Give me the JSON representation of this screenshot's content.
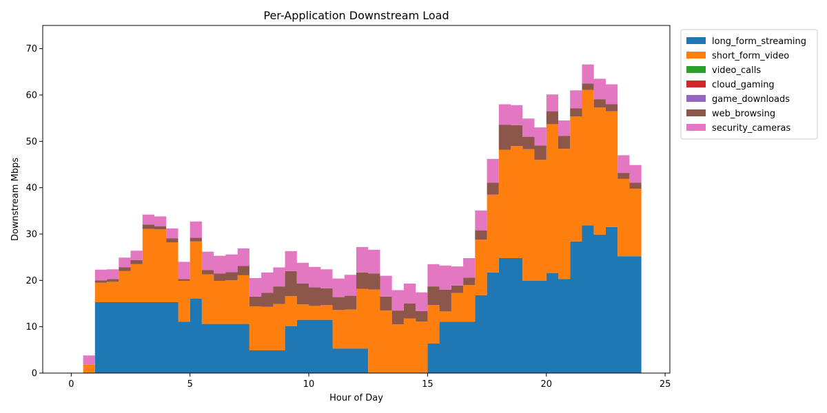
{
  "chart_data": {
    "type": "area",
    "stacked": true,
    "step": true,
    "title": "Per-Application Downstream Load",
    "xlabel": "Hour of Day",
    "ylabel": "Downstream Mbps",
    "xlim": [
      -1.2,
      25.2
    ],
    "ylim": [
      0,
      75
    ],
    "xticks": [
      0,
      5,
      10,
      15,
      20,
      25
    ],
    "yticks": [
      0,
      10,
      20,
      30,
      40,
      50,
      60,
      70
    ],
    "grid": false,
    "legend_position": "outside-upper-right",
    "x": [
      0,
      0.5,
      1,
      1.5,
      2,
      2.5,
      3,
      3.5,
      4,
      4.5,
      5,
      5.5,
      6,
      6.5,
      7,
      7.5,
      8,
      8.5,
      9,
      9.5,
      10,
      10.5,
      11,
      11.5,
      12,
      12.5,
      13,
      13.5,
      14,
      14.5,
      15,
      15.5,
      16,
      16.5,
      17,
      17.5,
      18,
      18.5,
      19,
      19.5,
      20,
      20.5,
      21,
      21.5,
      22,
      22.5,
      23,
      23.5,
      24
    ],
    "series": [
      {
        "name": "long_form_streaming",
        "color": "#1f77b4",
        "values": [
          0,
          0,
          15.3,
          15.3,
          15.3,
          15.3,
          15.3,
          15.3,
          15.3,
          11.1,
          16.1,
          10.6,
          10.6,
          10.6,
          10.6,
          4.9,
          4.9,
          4.9,
          10.1,
          11.5,
          11.5,
          11.5,
          5.3,
          5.3,
          5.3,
          0,
          0,
          0,
          0,
          0,
          6.4,
          11.1,
          11.1,
          11.1,
          16.8,
          21.7,
          24.8,
          24.8,
          19.9,
          19.9,
          21.6,
          20.3,
          28.4,
          31.9,
          29.9,
          31.5,
          25.2,
          25.2,
          25.2
        ]
      },
      {
        "name": "short_form_video",
        "color": "#ff7f0e",
        "values": [
          0,
          1.8,
          4.2,
          4.4,
          6.7,
          8.2,
          15.8,
          15.7,
          12.9,
          8.8,
          12.3,
          10.7,
          9.3,
          9.4,
          10.5,
          9.5,
          9.4,
          10.0,
          6.5,
          3.3,
          3.0,
          3.2,
          8.3,
          8.4,
          12.9,
          18.0,
          13.5,
          10.5,
          11.8,
          11.1,
          8.3,
          2.2,
          6.2,
          7.9,
          12.0,
          16.8,
          23.4,
          24.2,
          28.4,
          26.1,
          32.1,
          28.1,
          27.0,
          29.2,
          27.4,
          25.0,
          16.7,
          14.6,
          12.1
        ]
      },
      {
        "name": "video_calls",
        "color": "#2ca02c",
        "values": [
          0,
          0,
          0,
          0,
          0,
          0,
          0,
          0,
          0,
          0,
          0,
          0,
          0,
          0,
          0,
          0,
          0,
          0,
          0,
          0,
          0,
          0,
          0,
          0,
          0,
          0,
          0,
          0,
          0,
          0,
          0,
          0,
          0,
          0,
          0,
          0,
          0,
          0,
          0,
          0,
          0,
          0,
          0,
          0,
          0,
          0,
          0,
          0,
          0
        ]
      },
      {
        "name": "cloud_gaming",
        "color": "#d62728",
        "values": [
          0,
          0,
          0,
          0,
          0,
          0,
          0,
          0,
          0,
          0,
          0,
          0,
          0,
          0,
          0,
          0,
          0,
          0,
          0,
          0,
          0,
          0,
          0,
          0,
          0,
          0,
          0,
          0,
          0,
          0,
          0,
          0,
          0,
          0,
          0,
          0,
          0,
          0,
          0,
          0,
          0,
          0,
          0,
          0,
          0,
          0,
          0,
          0,
          0
        ]
      },
      {
        "name": "game_downloads",
        "color": "#9467bd",
        "values": [
          0,
          0,
          0,
          0,
          0,
          0,
          0,
          0,
          0,
          0,
          0,
          0,
          0,
          0,
          0,
          0,
          0,
          0,
          0,
          0,
          0,
          0,
          0,
          0,
          0,
          0,
          0,
          0,
          0,
          0,
          0,
          0,
          0,
          0,
          0,
          0,
          0,
          0,
          0,
          0,
          0,
          0,
          0,
          0,
          0,
          0,
          0,
          0,
          0
        ]
      },
      {
        "name": "web_browsing",
        "color": "#8c564b",
        "values": [
          0,
          0,
          0.5,
          0.6,
          0.8,
          0.9,
          0.9,
          0.7,
          0.9,
          0.4,
          0.8,
          0.9,
          1.6,
          1.8,
          2.0,
          2.1,
          3.0,
          3.8,
          5.4,
          4.5,
          4.0,
          3.6,
          2.8,
          3.0,
          3.5,
          3.5,
          3.0,
          3.0,
          3.2,
          2.3,
          4.0,
          4.7,
          1.6,
          1.6,
          2.0,
          2.6,
          5.4,
          4.5,
          2.7,
          3.1,
          2.8,
          2.8,
          1.7,
          1.4,
          1.8,
          1.5,
          1.3,
          1.3,
          1.1
        ]
      },
      {
        "name": "security_cameras",
        "color": "#e377c2",
        "values": [
          0,
          2.0,
          2.3,
          2.1,
          2.1,
          2.0,
          2.2,
          2.1,
          2.1,
          3.7,
          3.5,
          4.0,
          3.8,
          3.8,
          3.8,
          4.0,
          4.4,
          4.1,
          4.3,
          4.5,
          4.4,
          4.1,
          4.0,
          4.5,
          5.5,
          5.1,
          4.5,
          4.4,
          4.3,
          4.0,
          4.8,
          5.2,
          4.1,
          4.2,
          4.3,
          5.1,
          4.4,
          4.3,
          3.9,
          3.9,
          3.6,
          3.3,
          3.9,
          4.1,
          4.4,
          4.3,
          3.8,
          3.8,
          4.1
        ]
      }
    ]
  }
}
